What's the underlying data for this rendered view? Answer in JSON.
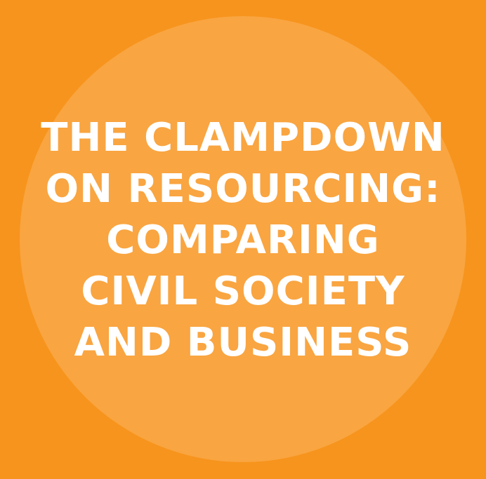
{
  "title_lines": [
    "THE CLAMPDOWN",
    "ON RESOURCING:",
    "COMPARING",
    "CIVIL SOCIETY",
    "AND BUSINESS"
  ],
  "colors": {
    "background": "#f7941d",
    "circle": "#f9a541",
    "text": "#ffffff"
  }
}
